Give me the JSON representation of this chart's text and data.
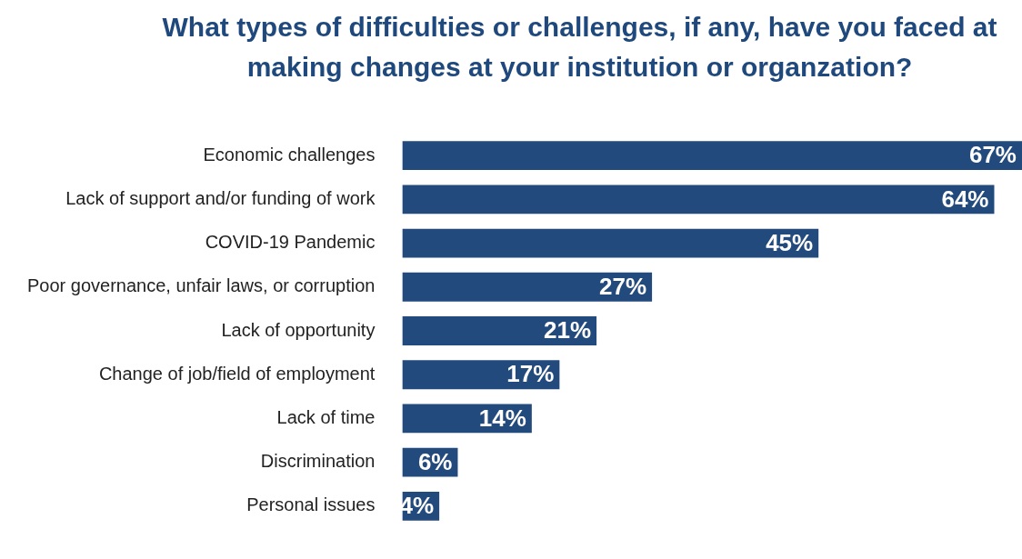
{
  "chart_data": {
    "type": "bar",
    "orientation": "horizontal",
    "title": "What types of difficulties or challenges, if any, have you faced at making changes at your institution or organzation?",
    "categories": [
      "Economic challenges",
      "Lack of support and/or funding of work",
      "COVID-19 Pandemic",
      "Poor governance, unfair laws, or corruption",
      "Lack of opportunity",
      "Change of job/field of employment",
      "Lack of time",
      "Discrimination",
      "Personal issues"
    ],
    "values": [
      67,
      64,
      45,
      27,
      21,
      17,
      14,
      6,
      4
    ],
    "value_labels": [
      "67%",
      "64%",
      "45%",
      "27%",
      "21%",
      "17%",
      "14%",
      "6%",
      "4%"
    ],
    "color": "#234a7c"
  }
}
